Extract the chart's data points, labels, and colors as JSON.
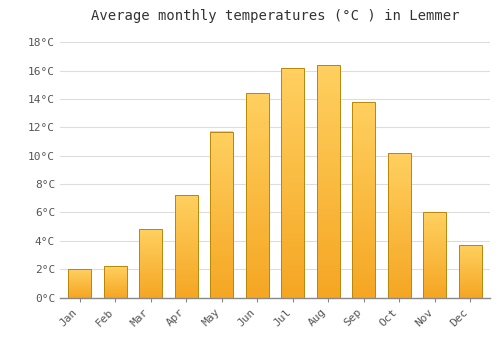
{
  "title": "Average monthly temperatures (°C ) in Lemmer",
  "months": [
    "Jan",
    "Feb",
    "Mar",
    "Apr",
    "May",
    "Jun",
    "Jul",
    "Aug",
    "Sep",
    "Oct",
    "Nov",
    "Dec"
  ],
  "values": [
    2.0,
    2.2,
    4.8,
    7.2,
    11.7,
    14.4,
    16.2,
    16.4,
    13.8,
    10.2,
    6.0,
    3.7
  ],
  "bar_color_bottom": "#F5A623",
  "bar_color_top": "#FFD060",
  "bar_edge_color": "#B8860B",
  "background_color": "#FFFFFF",
  "grid_color": "#DDDDDD",
  "ylim": [
    0,
    19
  ],
  "yticks": [
    0,
    2,
    4,
    6,
    8,
    10,
    12,
    14,
    16,
    18
  ],
  "ytick_labels": [
    "0°C",
    "2°C",
    "4°C",
    "6°C",
    "8°C",
    "10°C",
    "12°C",
    "14°C",
    "16°C",
    "18°C"
  ],
  "title_fontsize": 10,
  "tick_fontsize": 8,
  "font_family": "monospace"
}
